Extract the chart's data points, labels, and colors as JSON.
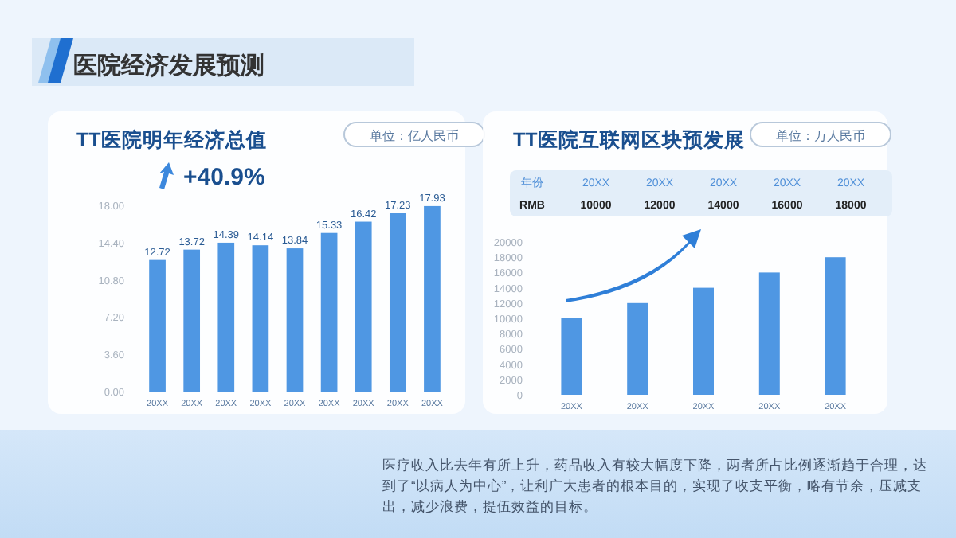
{
  "chart_data": [
    {
      "type": "bar",
      "title": "TT医院明年经济总值",
      "annotations": [
        "医院经济发展预测",
        "单位：亿人民币",
        "+40.9%",
        "医疗收入比去年有所上升，药品收入有较大幅度下降，两者所占比例逐渐趋于合理，达到了“以病人为中心”，让利广大患者的根本目的，实现了收支平衡，略有节余，压减支出，减少浪费，提伍效益的目标。"
      ],
      "categories": [
        "20XX",
        "20XX",
        "20XX",
        "20XX",
        "20XX",
        "20XX",
        "20XX",
        "20XX",
        "20XX"
      ],
      "values": [
        12.72,
        13.72,
        14.39,
        14.14,
        13.84,
        15.33,
        16.42,
        17.23,
        17.93
      ],
      "color": "#4f97e3",
      "ylim": [
        0,
        18
      ],
      "yticks": [
        {
          "value": 0,
          "label": "0.00"
        },
        {
          "value": 3.6,
          "label": "3.60"
        },
        {
          "value": 7.2,
          "label": "7.20"
        },
        {
          "value": 10.8,
          "label": "10.80"
        },
        {
          "value": 14.4,
          "label": "14.40"
        },
        {
          "value": 18,
          "label": "18.00"
        }
      ],
      "data_labels": true
    },
    {
      "type": "bar",
      "title": "TT医院互联网区块预发展",
      "annotations": [
        "单位：万人民币",
        "年份",
        "RMB"
      ],
      "categories": [
        "20XX",
        "20XX",
        "20XX",
        "20XX",
        "20XX"
      ],
      "values": [
        10000,
        12000,
        14000,
        16000,
        18000
      ],
      "color": "#4f97e3",
      "ylim": [
        0,
        20000
      ],
      "yticks": [
        0,
        2000,
        4000,
        6000,
        8000,
        10000,
        12000,
        14000,
        16000,
        18000,
        20000
      ],
      "data_labels": true
    }
  ]
}
